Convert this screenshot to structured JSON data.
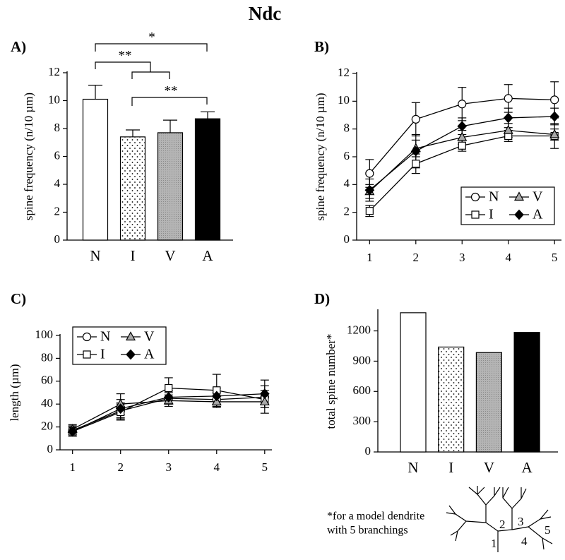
{
  "title": "Ndc",
  "chart_data": [
    {
      "panel": "A)",
      "type": "bar",
      "ylabel": "spine frequency (n/10 µm)",
      "categories": [
        "N",
        "I",
        "V",
        "A"
      ],
      "values": [
        10.1,
        7.4,
        7.7,
        8.7
      ],
      "errors": [
        1.0,
        0.5,
        0.9,
        0.5
      ],
      "patterns": [
        "white",
        "dots",
        "gray",
        "black"
      ],
      "ylim": [
        0,
        12
      ],
      "yticks": [
        0,
        2,
        4,
        6,
        8,
        10,
        12
      ],
      "significance": [
        "*",
        "**",
        "**"
      ]
    },
    {
      "panel": "B)",
      "type": "line",
      "ylabel": "spine frequency (n/10 µm)",
      "x": [
        1,
        2,
        3,
        4,
        5
      ],
      "xlim": [
        0.72,
        5.15
      ],
      "xticks": [
        1,
        2,
        3,
        4,
        5
      ],
      "ylim": [
        0,
        12
      ],
      "yticks": [
        0,
        2,
        4,
        6,
        8,
        10,
        12
      ],
      "legend": "lower right",
      "series": [
        {
          "name": "N",
          "marker": "circle",
          "color": "#ffffff",
          "values": [
            4.8,
            8.7,
            9.8,
            10.2,
            10.1
          ],
          "errors": [
            1.0,
            1.2,
            1.2,
            1.0,
            1.3
          ]
        },
        {
          "name": "I",
          "marker": "square",
          "color": "#ffffff",
          "values": [
            2.1,
            5.5,
            6.8,
            7.5,
            7.5
          ],
          "errors": [
            0.4,
            0.7,
            0.4,
            0.4,
            0.9
          ]
        },
        {
          "name": "V",
          "marker": "triangle",
          "color": "#a8a8a8",
          "values": [
            3.5,
            6.6,
            7.4,
            7.9,
            7.6
          ],
          "errors": [
            0.5,
            0.6,
            0.5,
            0.5,
            0.4
          ]
        },
        {
          "name": "A",
          "marker": "diamond",
          "color": "#000000",
          "values": [
            3.6,
            6.4,
            8.2,
            8.8,
            8.9
          ],
          "errors": [
            0.8,
            1.2,
            0.6,
            0.7,
            0.6
          ]
        }
      ]
    },
    {
      "panel": "C)",
      "type": "line",
      "ylabel": "length (µm)",
      "x": [
        1,
        2,
        3,
        4,
        5
      ],
      "xlim": [
        0.74,
        5.15
      ],
      "xticks": [
        1,
        2,
        3,
        4,
        5
      ],
      "ylim": [
        0,
        100
      ],
      "yticks": [
        0,
        20,
        40,
        60,
        80,
        100
      ],
      "legend": "upper left",
      "series": [
        {
          "name": "N",
          "marker": "circle",
          "color": "#ffffff",
          "values": [
            17,
            34,
            45,
            44,
            46
          ],
          "errors": [
            4,
            7,
            5,
            6,
            6
          ]
        },
        {
          "name": "I",
          "marker": "square",
          "color": "#ffffff",
          "values": [
            16,
            33,
            54,
            52,
            44
          ],
          "errors": [
            4,
            7,
            9,
            14,
            12
          ]
        },
        {
          "name": "V",
          "marker": "triangle",
          "color": "#a8a8a8",
          "values": [
            18,
            40,
            43,
            42,
            42
          ],
          "errors": [
            4,
            9,
            5,
            5,
            5
          ]
        },
        {
          "name": "A",
          "marker": "diamond",
          "color": "#000000",
          "values": [
            16,
            36,
            46,
            47,
            49
          ],
          "errors": [
            4,
            8,
            6,
            7,
            12
          ]
        }
      ]
    },
    {
      "panel": "D)",
      "type": "bar",
      "ylabel": "total spine number*",
      "categories": [
        "N",
        "I",
        "V",
        "A"
      ],
      "values": [
        1380,
        1040,
        985,
        1185
      ],
      "patterns": [
        "white",
        "dots",
        "gray",
        "black"
      ],
      "ylim": [
        0,
        1400
      ],
      "yticks": [
        0,
        300,
        600,
        900,
        1200
      ]
    }
  ],
  "footnote": [
    "*for a model dendrite",
    "with 5 branchings"
  ],
  "diagram_labels": [
    "1",
    "2",
    "3",
    "4",
    "5"
  ]
}
